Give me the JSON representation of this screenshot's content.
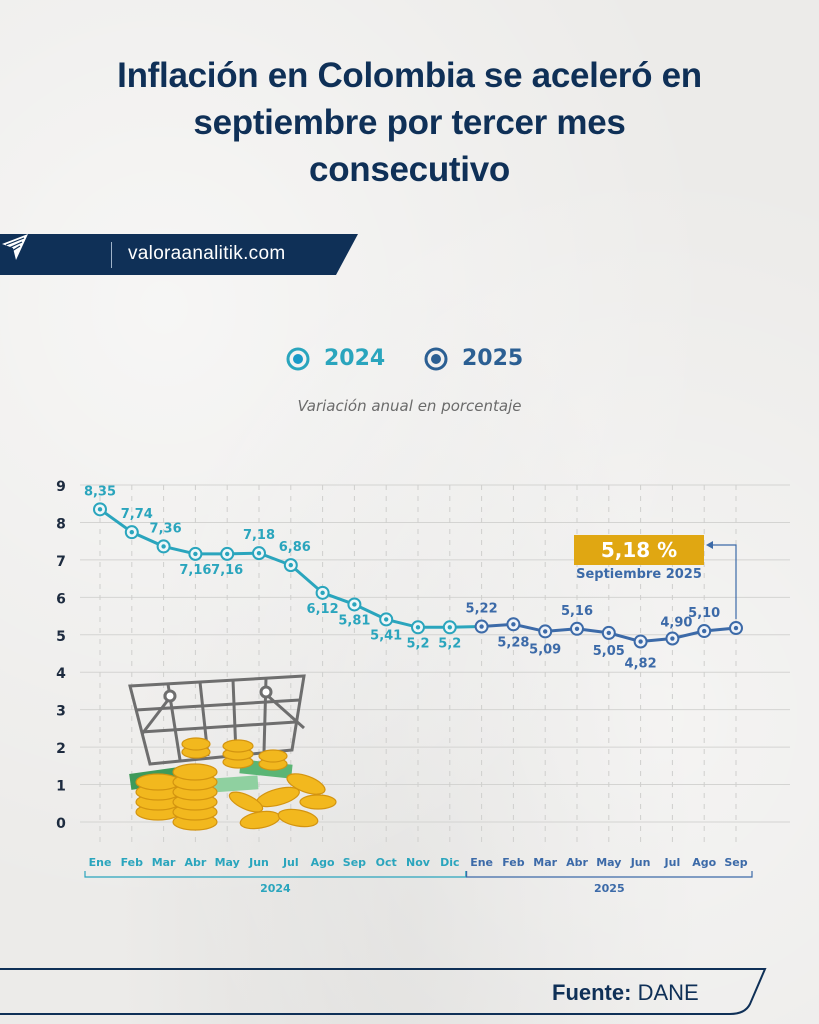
{
  "header": {
    "title_lines": [
      "Inflación en Colombia se aceleró en",
      "septiembre por tercer mes",
      "consecutivo"
    ],
    "brand_url": "valoraanalitik.com",
    "brand_icon": "paper-plane-logo-icon"
  },
  "legend": {
    "items": [
      {
        "label": "2024",
        "color": "#2aa5bd"
      },
      {
        "label": "2025",
        "color": "#3c6aa8"
      }
    ]
  },
  "subtitle": "Variación anual en porcentaje",
  "highlight": {
    "value_label": "5,18 %",
    "period_label": "Septiembre 2025",
    "color": "#e0a712"
  },
  "footer": {
    "source_label": "Fuente:",
    "source_value": "DANE"
  },
  "colors": {
    "title": "#0f3057",
    "series_2024": "#2aa5bd",
    "series_2025": "#3c6aa8",
    "badge": "#e0a712"
  },
  "chart_data": {
    "type": "line",
    "title": "Variación anual en porcentaje",
    "xlabel": "",
    "ylabel": "",
    "ylim": [
      0,
      9
    ],
    "yticks": [
      0,
      1,
      2,
      3,
      4,
      5,
      6,
      7,
      8,
      9
    ],
    "grid": true,
    "legend_position": "top-center",
    "x_groups": [
      {
        "label": "2024",
        "categories": [
          "Ene",
          "Feb",
          "Mar",
          "Abr",
          "May",
          "Jun",
          "Jul",
          "Ago",
          "Sep",
          "Oct",
          "Nov",
          "Dic"
        ]
      },
      {
        "label": "2025",
        "categories": [
          "Ene",
          "Feb",
          "Mar",
          "Abr",
          "May",
          "Jun",
          "Jul",
          "Ago",
          "Sep"
        ]
      }
    ],
    "series": [
      {
        "name": "2024",
        "color": "#2aa5bd",
        "values": [
          8.35,
          7.74,
          7.36,
          7.16,
          7.16,
          7.18,
          6.86,
          6.12,
          5.81,
          5.41,
          5.2,
          5.2
        ],
        "labels": [
          "8,35",
          "7,74",
          "7,36",
          "7,16",
          "7,16",
          "7,18",
          "6,86",
          "6,12",
          "5,81",
          "5,41",
          "5,2",
          "5,2"
        ]
      },
      {
        "name": "2025",
        "color": "#3c6aa8",
        "values": [
          5.22,
          5.28,
          5.09,
          5.16,
          5.05,
          4.82,
          4.9,
          5.1,
          5.18
        ],
        "labels": [
          "5,22",
          "5,28",
          "5,09",
          "5,16",
          "5,05",
          "4,82",
          "4,90",
          "5,10",
          ""
        ]
      }
    ],
    "annotation": {
      "text": "5,18 %",
      "subtext": "Septiembre 2025",
      "point": "Sep 2025"
    }
  }
}
